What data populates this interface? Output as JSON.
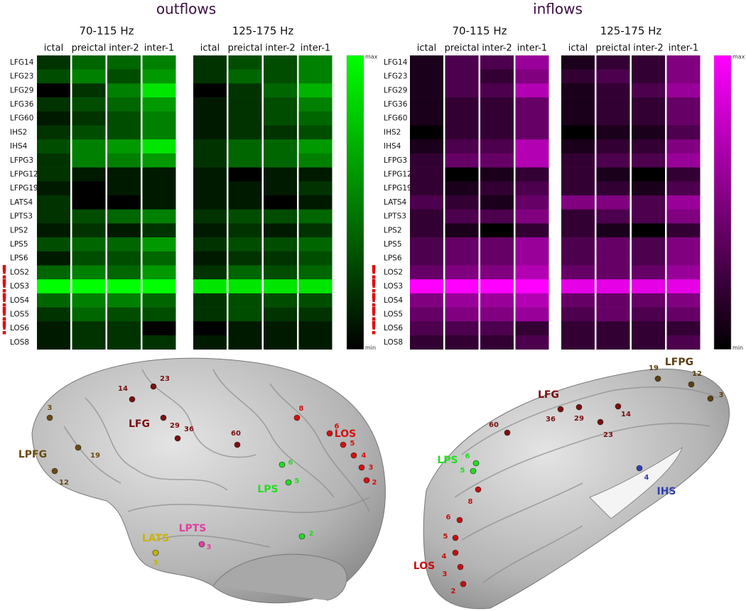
{
  "rows": [
    {
      "label": "LFG14"
    },
    {
      "label": "LFG23"
    },
    {
      "label": "LFG29"
    },
    {
      "label": "LFG36"
    },
    {
      "label": "LFG60"
    },
    {
      "label": "IHS2"
    },
    {
      "label": "IHS4"
    },
    {
      "label": "LFPG3"
    },
    {
      "label": "LFPG12"
    },
    {
      "label": "LFPG19"
    },
    {
      "label": "LATS4"
    },
    {
      "label": "LPTS3"
    },
    {
      "label": "LPS2"
    },
    {
      "label": "LPS5"
    },
    {
      "label": "LPS6"
    },
    {
      "label": "LOS2",
      "flag": "!"
    },
    {
      "label": "LOS3",
      "flag": "!"
    },
    {
      "label": "LOS4",
      "flag": "!"
    },
    {
      "label": "LOS5",
      "flag": "!"
    },
    {
      "label": "LOS6",
      "flag": "!"
    },
    {
      "label": "LOS8"
    }
  ],
  "range": [
    0,
    10
  ],
  "columns": [
    "ictal",
    "preictal",
    "inter-2",
    "inter-1"
  ],
  "colorbar": {
    "max": "max",
    "min": "min"
  },
  "panels": [
    {
      "title": "outflows",
      "color": "#00ff00",
      "bands": [
        {
          "label": "70-115 Hz",
          "values": [
            [
              2,
              4,
              4,
              5
            ],
            [
              3,
              5,
              3,
              6
            ],
            [
              0,
              2,
              5,
              9
            ],
            [
              2,
              3,
              4,
              6
            ],
            [
              1,
              2,
              3,
              5
            ],
            [
              2,
              3,
              3,
              5
            ],
            [
              3,
              5,
              6,
              9
            ],
            [
              2,
              5,
              5,
              6
            ],
            [
              2,
              1,
              1,
              1
            ],
            [
              1,
              0,
              1,
              1
            ],
            [
              2,
              0,
              0,
              1
            ],
            [
              2,
              3,
              4,
              5
            ],
            [
              1,
              2,
              1,
              2
            ],
            [
              3,
              4,
              4,
              6
            ],
            [
              1,
              3,
              3,
              4
            ],
            [
              4,
              5,
              4,
              6
            ],
            [
              10,
              10,
              10,
              10
            ],
            [
              4,
              5,
              5,
              4
            ],
            [
              2,
              4,
              3,
              3
            ],
            [
              1,
              2,
              2,
              0
            ],
            [
              1,
              2,
              2,
              2
            ]
          ]
        },
        {
          "label": "125-175 Hz",
          "values": [
            [
              2,
              3,
              3,
              5
            ],
            [
              2,
              4,
              3,
              5
            ],
            [
              0,
              2,
              4,
              7
            ],
            [
              1,
              2,
              3,
              5
            ],
            [
              1,
              2,
              3,
              4
            ],
            [
              1,
              2,
              2,
              3
            ],
            [
              2,
              4,
              4,
              6
            ],
            [
              2,
              4,
              4,
              5
            ],
            [
              1,
              0,
              1,
              1
            ],
            [
              1,
              1,
              1,
              2
            ],
            [
              1,
              1,
              0,
              1
            ],
            [
              2,
              3,
              3,
              4
            ],
            [
              1,
              2,
              1,
              2
            ],
            [
              2,
              3,
              3,
              4
            ],
            [
              1,
              2,
              2,
              3
            ],
            [
              2,
              4,
              3,
              4
            ],
            [
              9,
              9,
              9,
              9
            ],
            [
              2,
              3,
              3,
              3
            ],
            [
              2,
              3,
              2,
              2
            ],
            [
              0,
              1,
              1,
              1
            ],
            [
              1,
              1,
              1,
              1
            ]
          ]
        }
      ]
    },
    {
      "title": "inflows",
      "color": "#ff00ff",
      "bands": [
        {
          "label": "70-115 Hz",
          "values": [
            [
              1,
              3,
              3,
              6
            ],
            [
              1,
              3,
              2,
              5
            ],
            [
              1,
              3,
              3,
              7
            ],
            [
              1,
              2,
              2,
              4
            ],
            [
              1,
              2,
              2,
              4
            ],
            [
              0,
              2,
              2,
              4
            ],
            [
              1,
              3,
              3,
              7
            ],
            [
              2,
              4,
              4,
              7
            ],
            [
              2,
              0,
              1,
              2
            ],
            [
              2,
              1,
              2,
              3
            ],
            [
              3,
              2,
              1,
              4
            ],
            [
              2,
              3,
              3,
              5
            ],
            [
              2,
              1,
              0,
              2
            ],
            [
              3,
              4,
              4,
              6
            ],
            [
              3,
              4,
              4,
              6
            ],
            [
              4,
              5,
              5,
              7
            ],
            [
              10,
              10,
              10,
              10
            ],
            [
              5,
              6,
              6,
              7
            ],
            [
              4,
              5,
              5,
              6
            ],
            [
              3,
              3,
              3,
              2
            ],
            [
              2,
              2,
              2,
              3
            ]
          ]
        },
        {
          "label": "125-175 Hz",
          "values": [
            [
              1,
              2,
              2,
              5
            ],
            [
              2,
              3,
              2,
              5
            ],
            [
              1,
              2,
              3,
              6
            ],
            [
              1,
              2,
              2,
              4
            ],
            [
              1,
              2,
              2,
              4
            ],
            [
              0,
              1,
              1,
              3
            ],
            [
              1,
              2,
              2,
              5
            ],
            [
              2,
              3,
              3,
              6
            ],
            [
              2,
              1,
              0,
              2
            ],
            [
              2,
              2,
              1,
              3
            ],
            [
              5,
              5,
              3,
              6
            ],
            [
              2,
              3,
              3,
              5
            ],
            [
              2,
              1,
              0,
              2
            ],
            [
              3,
              4,
              3,
              5
            ],
            [
              3,
              4,
              3,
              5
            ],
            [
              4,
              4,
              4,
              6
            ],
            [
              9,
              9,
              9,
              9
            ],
            [
              4,
              4,
              4,
              5
            ],
            [
              3,
              4,
              3,
              4
            ],
            [
              2,
              2,
              2,
              2
            ],
            [
              2,
              2,
              2,
              3
            ]
          ]
        }
      ]
    }
  ],
  "brains": [
    {
      "regions": [
        {
          "name": "LFG",
          "color": "#7a1010",
          "electrodes": [
            "14",
            "23",
            "29",
            "36",
            "60"
          ]
        },
        {
          "name": "LPFG",
          "color": "#6b4a12",
          "electrodes": [
            "3",
            "19",
            "12"
          ]
        },
        {
          "name": "LOS",
          "color": "#d41010",
          "electrodes": [
            "8",
            "6",
            "5",
            "4",
            "3",
            "2"
          ]
        },
        {
          "name": "LPS",
          "color": "#22dd22",
          "electrodes": [
            "6",
            "5",
            "2"
          ]
        },
        {
          "name": "LATS",
          "color": "#c8b400",
          "electrodes": [
            "3"
          ]
        },
        {
          "name": "LPTS",
          "color": "#e040a0",
          "electrodes": [
            "3"
          ]
        }
      ]
    },
    {
      "regions": [
        {
          "name": "LFPG",
          "color": "#5a3e10",
          "electrodes": [
            "19",
            "12",
            "3"
          ]
        },
        {
          "name": "LFG",
          "color": "#7a1010",
          "electrodes": [
            "60",
            "36",
            "29",
            "14",
            "23"
          ]
        },
        {
          "name": "LPS",
          "color": "#22dd22",
          "electrodes": [
            "6",
            "5"
          ]
        },
        {
          "name": "LOS",
          "color": "#c41010",
          "electrodes": [
            "8",
            "6",
            "5",
            "4",
            "3",
            "2"
          ]
        },
        {
          "name": "IHS",
          "color": "#3040b0",
          "electrodes": [
            "4"
          ]
        }
      ]
    }
  ]
}
